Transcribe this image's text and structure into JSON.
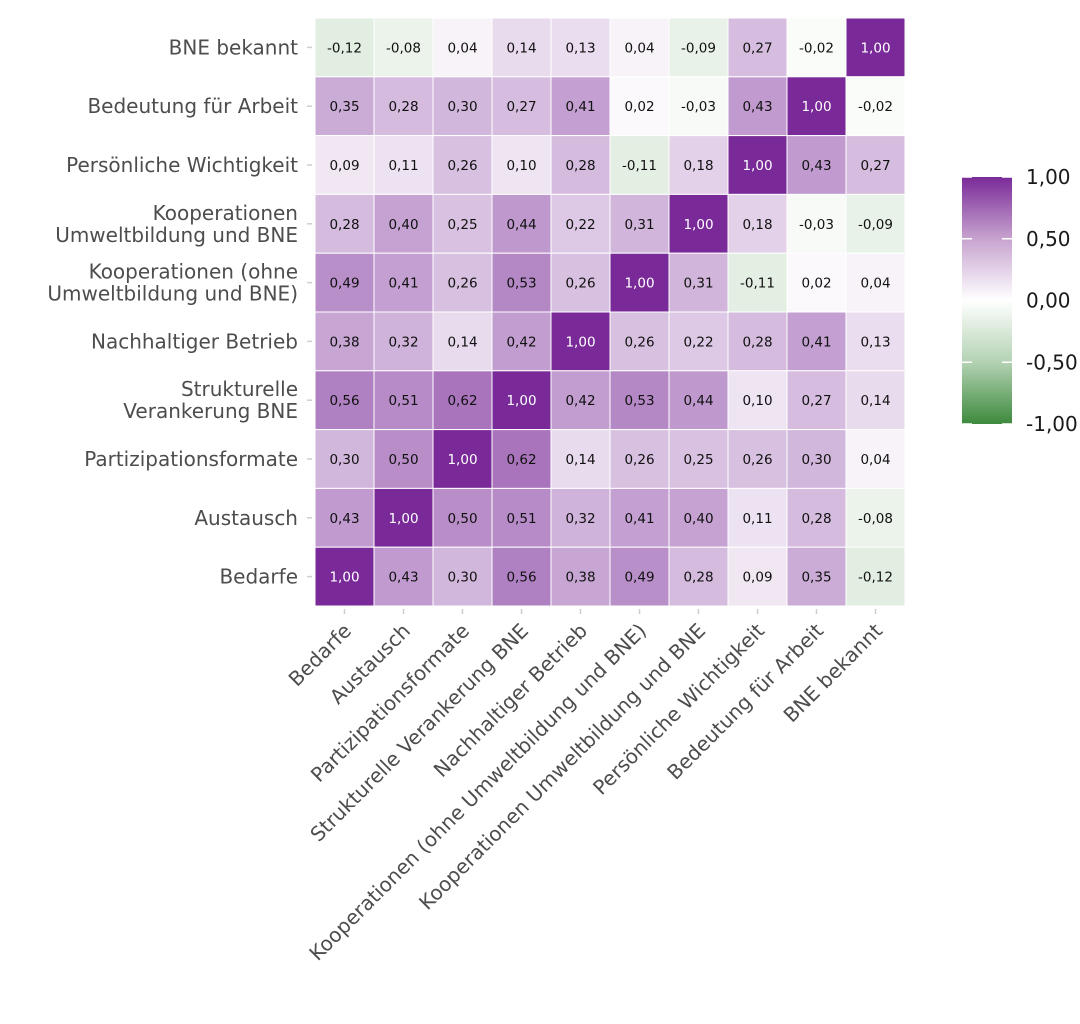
{
  "chart_data": {
    "type": "heatmap",
    "title": "",
    "xlabel": "",
    "ylabel": "",
    "x_categories": [
      "Bedarfe",
      "Austausch",
      "Partizipationsformate",
      "Strukturelle Verankerung BNE",
      "Nachhaltiger Betrieb",
      "Kooperationen (ohne Umweltbildung und BNE)",
      "Kooperationen Umweltbildung und BNE",
      "Persönliche Wichtigkeit",
      "Bedeutung für Arbeit",
      "BNE bekannt"
    ],
    "y_categories_top_to_bottom": [
      "BNE bekannt",
      "Bedeutung für Arbeit",
      "Persönliche Wichtigkeit",
      "Kooperationen Umweltbildung und BNE",
      "Kooperationen (ohne Umweltbildung und BNE)",
      "Nachhaltiger Betrieb",
      "Strukturelle Verankerung BNE",
      "Partizipationsformate",
      "Austausch",
      "Bedarfe"
    ],
    "y_label_lines": [
      [
        "BNE bekannt"
      ],
      [
        "Bedeutung für Arbeit"
      ],
      [
        "Persönliche Wichtigkeit"
      ],
      [
        "Kooperationen",
        "Umweltbildung und BNE"
      ],
      [
        "Kooperationen (ohne",
        "Umweltbildung und BNE)"
      ],
      [
        "Nachhaltiger Betrieb"
      ],
      [
        "Strukturelle",
        "Verankerung BNE"
      ],
      [
        "Partizipationsformate"
      ],
      [
        "Austausch"
      ],
      [
        "Bedarfe"
      ]
    ],
    "values": [
      [
        -0.12,
        -0.08,
        0.04,
        0.14,
        0.13,
        0.04,
        -0.09,
        0.27,
        -0.02,
        1.0
      ],
      [
        0.35,
        0.28,
        0.3,
        0.27,
        0.41,
        0.02,
        -0.03,
        0.43,
        1.0,
        -0.02
      ],
      [
        0.09,
        0.11,
        0.26,
        0.1,
        0.28,
        -0.11,
        0.18,
        1.0,
        0.43,
        0.27
      ],
      [
        0.28,
        0.4,
        0.25,
        0.44,
        0.22,
        0.31,
        1.0,
        0.18,
        -0.03,
        -0.09
      ],
      [
        0.49,
        0.41,
        0.26,
        0.53,
        0.26,
        1.0,
        0.31,
        -0.11,
        0.02,
        0.04
      ],
      [
        0.38,
        0.32,
        0.14,
        0.42,
        1.0,
        0.26,
        0.22,
        0.28,
        0.41,
        0.13
      ],
      [
        0.56,
        0.51,
        0.62,
        1.0,
        0.42,
        0.53,
        0.44,
        0.1,
        0.27,
        0.14
      ],
      [
        0.3,
        0.5,
        1.0,
        0.62,
        0.14,
        0.26,
        0.25,
        0.26,
        0.3,
        0.04
      ],
      [
        0.43,
        1.0,
        0.5,
        0.51,
        0.32,
        0.41,
        0.4,
        0.11,
        0.28,
        -0.08
      ],
      [
        1.0,
        0.43,
        0.3,
        0.56,
        0.38,
        0.49,
        0.28,
        0.09,
        0.35,
        -0.12
      ]
    ],
    "value_labels": [
      [
        "-0,12",
        "-0,08",
        "0,04",
        "0,14",
        "0,13",
        "0,04",
        "-0,09",
        "0,27",
        "-0,02",
        "1,00"
      ],
      [
        "0,35",
        "0,28",
        "0,30",
        "0,27",
        "0,41",
        "0,02",
        "-0,03",
        "0,43",
        "1,00",
        "-0,02"
      ],
      [
        "0,09",
        "0,11",
        "0,26",
        "0,10",
        "0,28",
        "-0,11",
        "0,18",
        "1,00",
        "0,43",
        "0,27"
      ],
      [
        "0,28",
        "0,40",
        "0,25",
        "0,44",
        "0,22",
        "0,31",
        "1,00",
        "0,18",
        "-0,03",
        "-0,09"
      ],
      [
        "0,49",
        "0,41",
        "0,26",
        "0,53",
        "0,26",
        "1,00",
        "0,31",
        "-0,11",
        "0,02",
        "0,04"
      ],
      [
        "0,38",
        "0,32",
        "0,14",
        "0,42",
        "1,00",
        "0,26",
        "0,22",
        "0,28",
        "0,41",
        "0,13"
      ],
      [
        "0,56",
        "0,51",
        "0,62",
        "1,00",
        "0,42",
        "0,53",
        "0,44",
        "0,10",
        "0,27",
        "0,14"
      ],
      [
        "0,30",
        "0,50",
        "1,00",
        "0,62",
        "0,14",
        "0,26",
        "0,25",
        "0,26",
        "0,30",
        "0,04"
      ],
      [
        "0,43",
        "1,00",
        "0,50",
        "0,51",
        "0,32",
        "0,41",
        "0,40",
        "0,11",
        "0,28",
        "-0,08"
      ],
      [
        "1,00",
        "0,43",
        "0,30",
        "0,56",
        "0,38",
        "0,49",
        "0,28",
        "0,09",
        "0,35",
        "-0,12"
      ]
    ],
    "color_scale": {
      "min": -1,
      "max": 1,
      "low_color": "#3d8a3d",
      "mid_color": "#ffffff",
      "high_color": "#7a2a98"
    },
    "legend": {
      "position": "right",
      "ticks": [
        1.0,
        0.5,
        0.0,
        -0.5,
        -1.0
      ],
      "tick_labels": [
        "1,00",
        "0,50",
        "0,00",
        "-0,50",
        "-1,00"
      ]
    },
    "grid": false
  }
}
